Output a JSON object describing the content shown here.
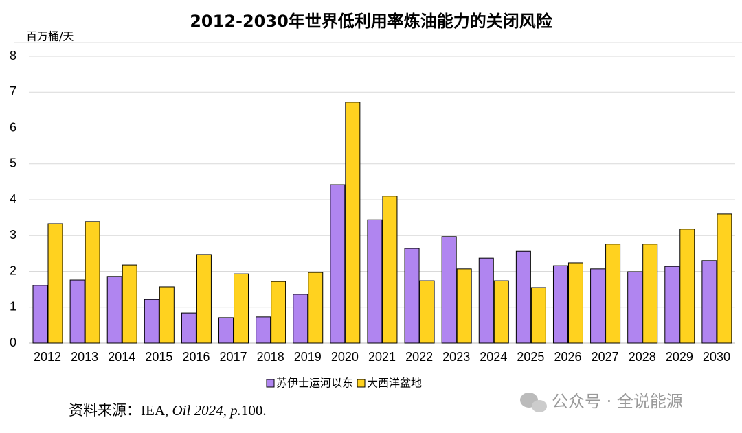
{
  "chart_data": {
    "type": "bar",
    "title": "2012-2030年世界低利用率炼油能力的关闭风险",
    "y_label": "百万桶/天",
    "categories": [
      "2012",
      "2013",
      "2014",
      "2015",
      "2016",
      "2017",
      "2018",
      "2019",
      "2020",
      "2021",
      "2022",
      "2023",
      "2024",
      "2025",
      "2026",
      "2027",
      "2028",
      "2029",
      "2030"
    ],
    "series": [
      {
        "name": "苏伊士运河以东",
        "color": "#b085f0",
        "values": [
          1.61,
          1.76,
          1.86,
          1.22,
          0.84,
          0.71,
          0.73,
          1.36,
          4.42,
          3.44,
          2.64,
          2.97,
          2.37,
          2.56,
          2.16,
          2.07,
          1.99,
          2.14,
          2.3
        ]
      },
      {
        "name": "大西洋盆地",
        "color": "#ffd21f",
        "values": [
          3.33,
          3.39,
          2.18,
          1.57,
          2.47,
          1.93,
          1.72,
          1.97,
          6.72,
          4.1,
          1.74,
          2.07,
          1.74,
          1.55,
          2.24,
          2.76,
          2.76,
          3.18,
          3.6
        ]
      }
    ],
    "ylim": [
      0,
      8
    ],
    "yticks": [
      0,
      1,
      2,
      3,
      4,
      5,
      6,
      7,
      8
    ],
    "grid": true,
    "legend": "bottom"
  },
  "source": {
    "prefix": "资料来源：IEA, ",
    "italic": "Oil 2024, p.",
    "suffix": "100."
  },
  "watermark": "公众号 · 全说能源"
}
